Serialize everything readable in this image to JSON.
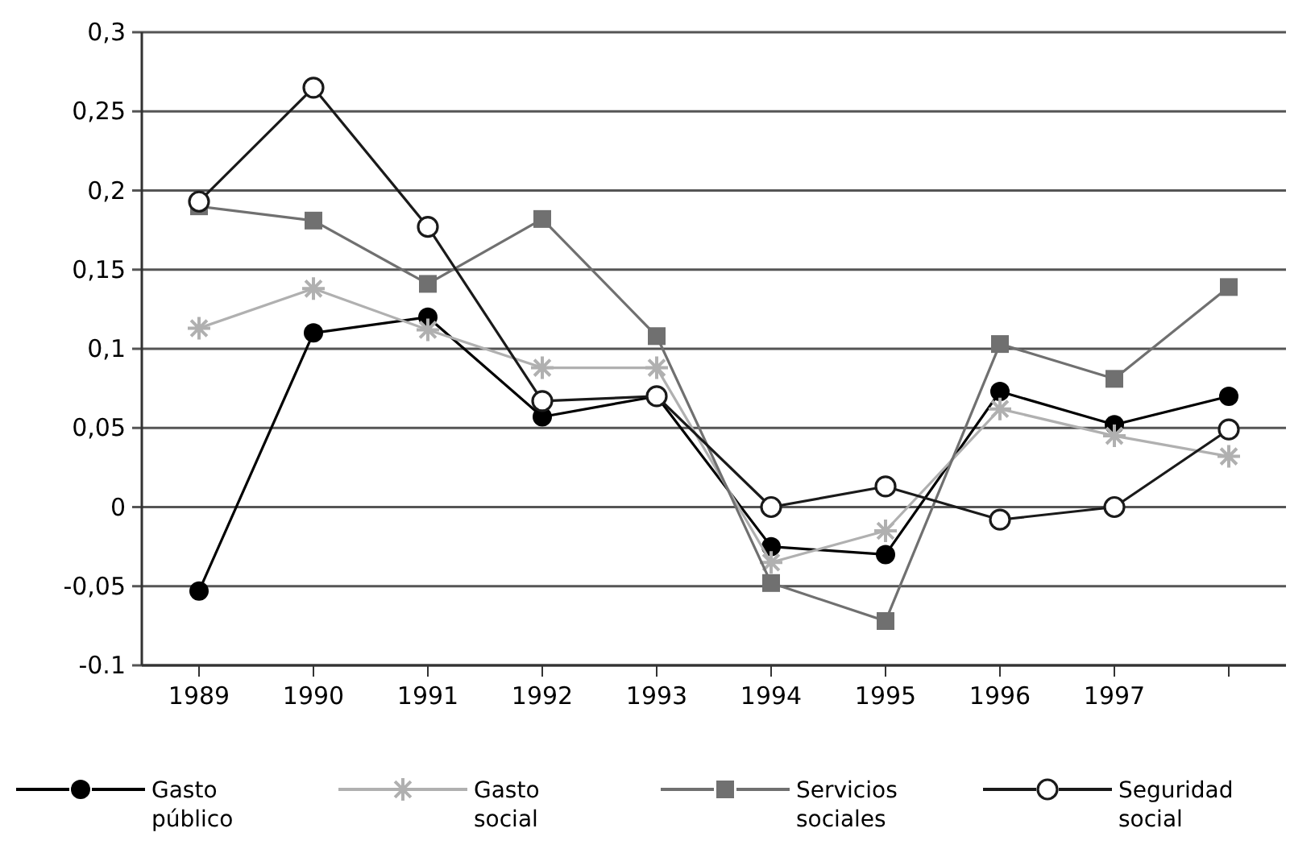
{
  "chart_data": {
    "type": "line",
    "categories": [
      "1989",
      "1990",
      "1991",
      "1992",
      "1993",
      "1994",
      "1995",
      "1996",
      "1997",
      null
    ],
    "ylim": [
      -0.1,
      0.3
    ],
    "yticks": [
      {
        "value": -0.1,
        "label": "-0.1"
      },
      {
        "value": -0.05,
        "label": "-0,05"
      },
      {
        "value": 0,
        "label": "0"
      },
      {
        "value": 0.05,
        "label": "0,05"
      },
      {
        "value": 0.1,
        "label": "0,1"
      },
      {
        "value": 0.15,
        "label": "0,15"
      },
      {
        "value": 0.2,
        "label": "0,2"
      },
      {
        "value": 0.25,
        "label": "0,25"
      },
      {
        "value": 0.3,
        "label": "0,3"
      }
    ],
    "grid": "y",
    "legend": "bottom",
    "series": [
      {
        "name": "Gasto público",
        "color": "#000000",
        "marker": "circle",
        "values": [
          -0.053,
          0.11,
          0.12,
          0.057,
          0.07,
          -0.025,
          -0.03,
          0.073,
          0.052,
          0.07
        ]
      },
      {
        "name": "Gasto social",
        "color": "#b0b0b0",
        "marker": "cross",
        "values": [
          0.113,
          0.138,
          0.112,
          0.088,
          0.088,
          -0.035,
          -0.015,
          0.062,
          0.045,
          0.032
        ]
      },
      {
        "name": "Servicios sociales",
        "color": "#707070",
        "marker": "square",
        "values": [
          0.19,
          0.181,
          0.141,
          0.182,
          0.108,
          -0.048,
          -0.072,
          0.103,
          0.081,
          0.139
        ]
      },
      {
        "name": "Seguridad social",
        "color": "#1a1a1a",
        "marker": "circle",
        "values": [
          0.193,
          0.265,
          0.177,
          0.067,
          0.07,
          0.0,
          0.013,
          -0.008,
          0.0,
          0.049
        ]
      }
    ]
  }
}
